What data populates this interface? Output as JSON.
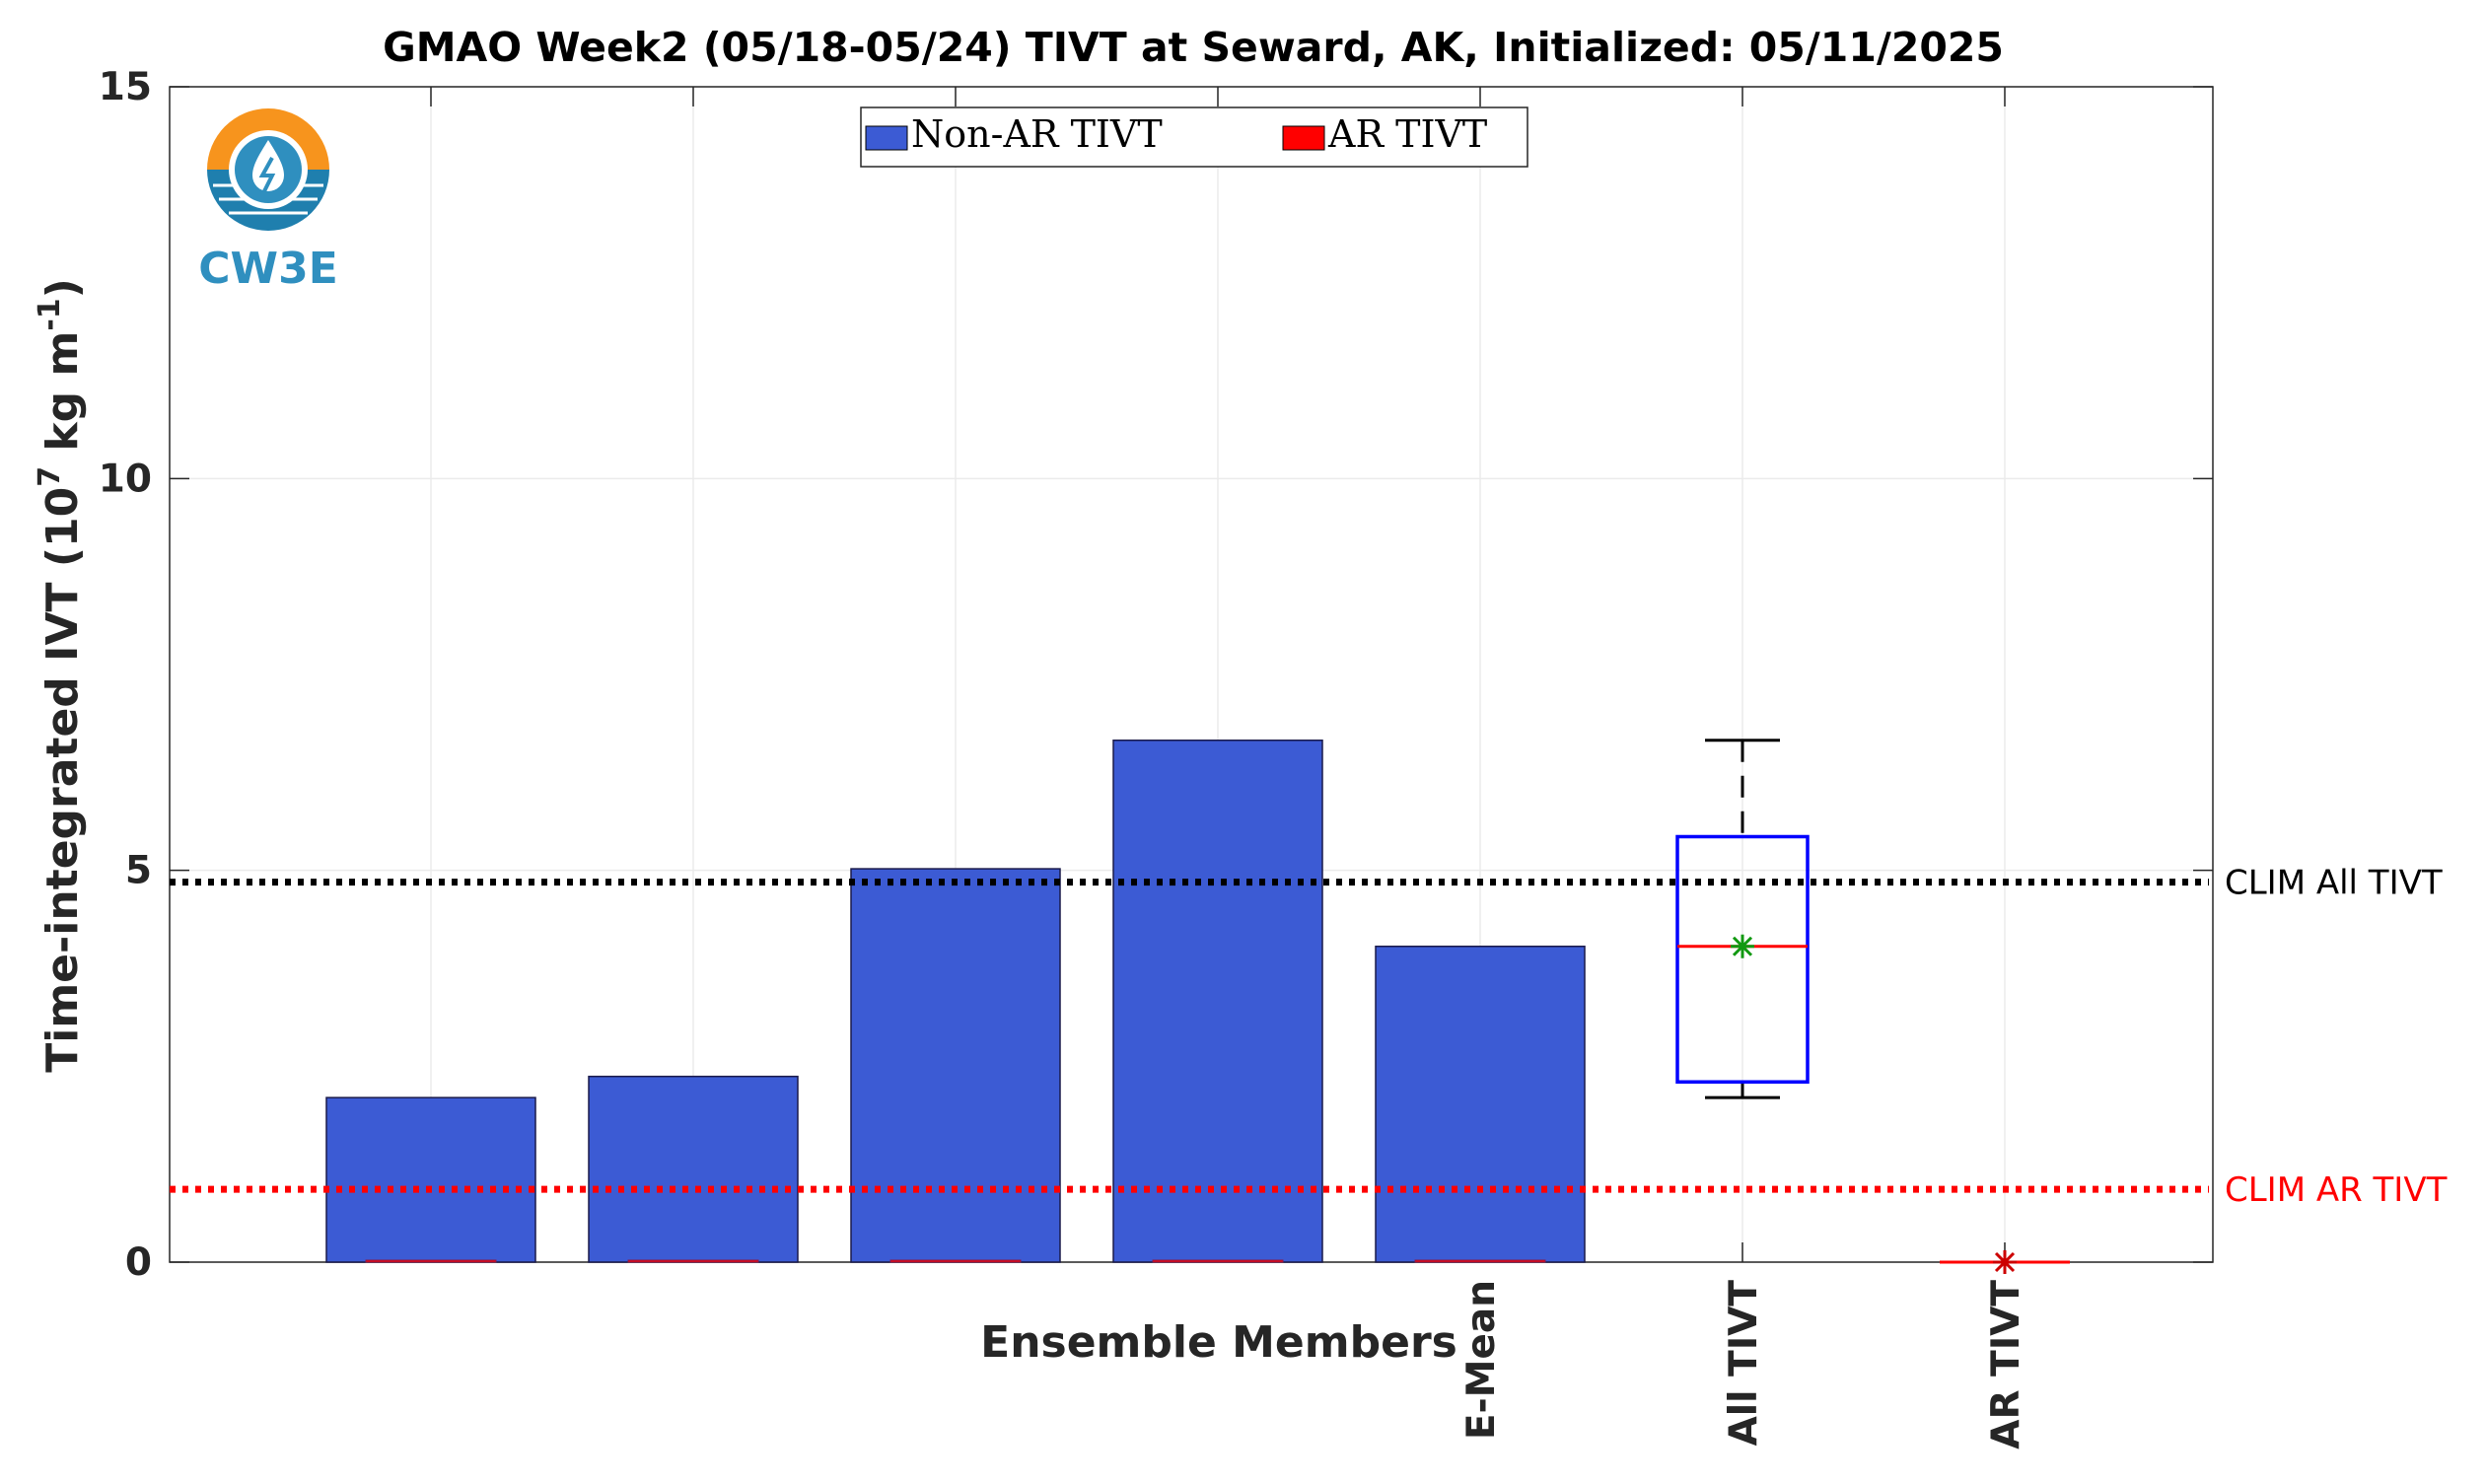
{
  "chart_data": {
    "type": "bar",
    "title": "GMAO Week2 (05/18-05/24) TIVT at Seward, AK, Initialized: 05/11/2025",
    "ylabel": "Time-integrated IVT (10",
    "ylabel_sup_exp": "7",
    "ylabel_mid": " kg m",
    "ylabel_sup_unit": "-1",
    "ylabel_end": ")",
    "xlabel": "Ensemble Members",
    "ylim": [
      0,
      15
    ],
    "yticks": [
      "0",
      "5",
      "10",
      "15"
    ],
    "grid": true,
    "legend_placement": "top-center",
    "categories": [
      "",
      "",
      "",
      "",
      "E-Mean",
      "All TIVT",
      "AR TIVT"
    ],
    "series": [
      {
        "name": "Non-AR TIVT",
        "color": "#3c5bd4",
        "values": [
          2.1,
          2.37,
          5.02,
          6.66,
          4.03,
          null,
          null
        ]
      },
      {
        "name": "AR TIVT",
        "color": "#ff0000",
        "values": [
          0,
          0,
          0,
          0,
          0,
          null,
          null
        ]
      }
    ],
    "boxplots": [
      {
        "category": "All TIVT",
        "min": 2.1,
        "q1": 2.3,
        "median": 4.03,
        "q3": 5.43,
        "max": 6.66,
        "mean": 4.03,
        "box_color": "#0000ff",
        "median_color": "#ff0000",
        "mean_color": "#119911"
      },
      {
        "category": "AR TIVT",
        "min": 0,
        "q1": 0,
        "median": 0,
        "q3": 0,
        "max": 0,
        "mean": 0,
        "box_color": "#ff0000",
        "median_color": "#ff0000",
        "mean_color": "#cc0000"
      }
    ],
    "reference_lines": [
      {
        "label": "CLIM All TIVT",
        "value": 4.85,
        "color": "#000000"
      },
      {
        "label": "CLIM AR TIVT",
        "value": 0.93,
        "color": "#ff0000"
      }
    ]
  },
  "logo": {
    "text": "CW3E"
  }
}
